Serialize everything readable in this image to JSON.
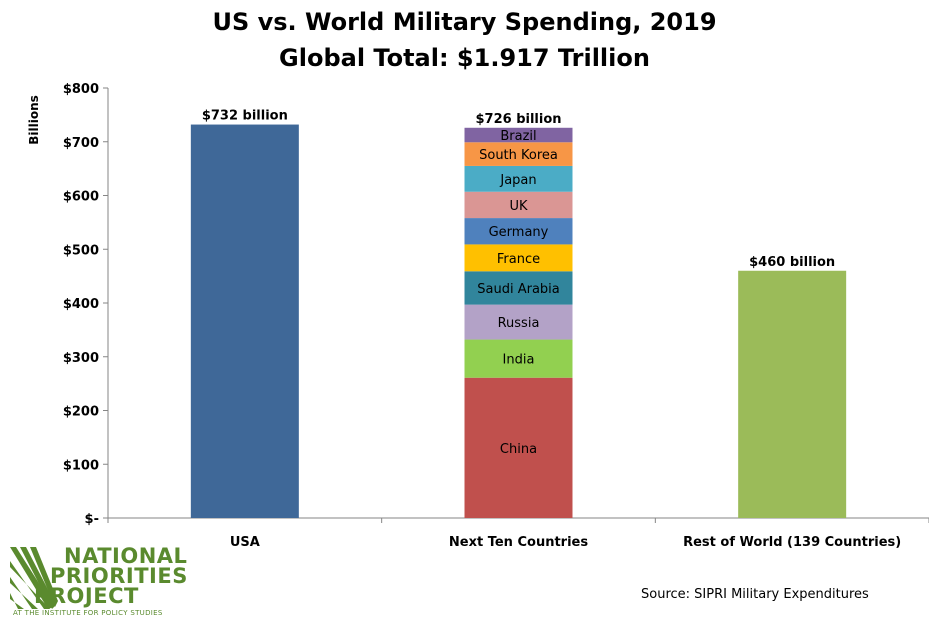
{
  "chart_data": {
    "type": "bar",
    "title": "US vs. World Military Spending, 2019",
    "subtitle": "Global Total: $1.917 Trillion",
    "ylabel": "Billions",
    "ylim": [
      0,
      800
    ],
    "yticks": [
      {
        "value": 0,
        "label": "$-"
      },
      {
        "value": 100,
        "label": "$100"
      },
      {
        "value": 200,
        "label": "$200"
      },
      {
        "value": 300,
        "label": "$300"
      },
      {
        "value": 400,
        "label": "$400"
      },
      {
        "value": 500,
        "label": "$500"
      },
      {
        "value": 600,
        "label": "$600"
      },
      {
        "value": 700,
        "label": "$700"
      },
      {
        "value": 800,
        "label": "$800"
      }
    ],
    "categories": [
      "USA",
      "Next Ten Countries",
      "Rest of World (139 Countries)"
    ],
    "bars": [
      {
        "category": "USA",
        "total_label": "$732 billion",
        "segments": [
          {
            "name": "",
            "value": 732,
            "color": "#3f6898"
          }
        ]
      },
      {
        "category": "Next Ten Countries",
        "total_label": "$726 billion",
        "segments": [
          {
            "name": "China",
            "value": 261,
            "color": "#c0504d"
          },
          {
            "name": "India",
            "value": 71,
            "color": "#92d050"
          },
          {
            "name": "Russia",
            "value": 65,
            "color": "#b3a2c7"
          },
          {
            "name": "Saudi Arabia",
            "value": 62,
            "color": "#31859c"
          },
          {
            "name": "France",
            "value": 50,
            "color": "#ffc000"
          },
          {
            "name": "Germany",
            "value": 49,
            "color": "#4f81bd"
          },
          {
            "name": "UK",
            "value": 49,
            "color": "#da9694"
          },
          {
            "name": "Japan",
            "value": 48,
            "color": "#4bacc6"
          },
          {
            "name": "South Korea",
            "value": 44,
            "color": "#f79646"
          },
          {
            "name": "Brazil",
            "value": 27,
            "color": "#8064a2"
          }
        ]
      },
      {
        "category": "Rest of World (139 Countries)",
        "total_label": "$460 billion",
        "segments": [
          {
            "name": "",
            "value": 460,
            "color": "#9bbb59"
          }
        ]
      }
    ],
    "grid": false,
    "legend": "none"
  },
  "logo": {
    "line1": "NATIONAL",
    "line2": "PRIORITIES",
    "line3": "PROJECT",
    "tagline": "AT THE INSTITUTE FOR POLICY STUDIES",
    "color": "#5a8a2e"
  },
  "source": "Source: SIPRI Military Expenditures"
}
